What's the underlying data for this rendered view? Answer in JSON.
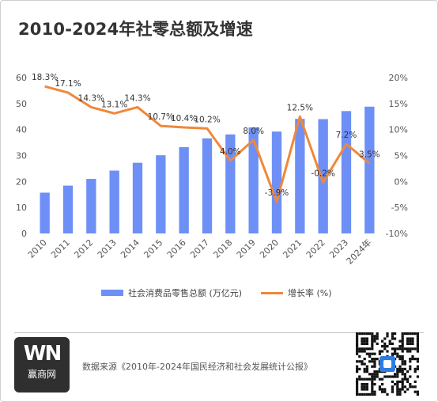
{
  "title": "2010-2024年社零总额及增速",
  "chart_data": {
    "type": "bar",
    "categories": [
      "2010",
      "2011",
      "2012",
      "2013",
      "2014",
      "2015",
      "2016",
      "2017",
      "2018",
      "2019",
      "2020",
      "2021",
      "2022",
      "2023",
      "2024年"
    ],
    "series": [
      {
        "name": "社会消费品零售总额 (万亿元)",
        "type": "bar",
        "axis": "left",
        "color": "#6d8ff6",
        "values": [
          15.7,
          18.4,
          21.0,
          24.2,
          27.2,
          30.1,
          33.2,
          36.6,
          38.1,
          40.8,
          39.2,
          44.1,
          44.0,
          47.1,
          48.8
        ]
      },
      {
        "name": "增长率 (%)",
        "type": "line",
        "axis": "right",
        "color": "#f0883a",
        "values": [
          18.3,
          17.1,
          14.3,
          13.1,
          14.3,
          10.7,
          10.4,
          10.2,
          4.0,
          8.0,
          -3.9,
          12.5,
          -0.2,
          7.2,
          3.5
        ],
        "labels": [
          "18.3%",
          "17.1%",
          "14.3%",
          "13.1%",
          "14.3%",
          "10.7%",
          "10.4%",
          "10.2%",
          "4.0%",
          "8.0%",
          "-3.9%",
          "12.5%",
          "-0.2%",
          "7.2%",
          "3.5%"
        ]
      }
    ],
    "y_left": {
      "min": 0,
      "max": 60,
      "ticks": [
        "0",
        "10",
        "20",
        "30",
        "40",
        "50",
        "60"
      ]
    },
    "y_right": {
      "min": -10,
      "max": 20,
      "ticks": [
        "-10%",
        "-5%",
        "0%",
        "5%",
        "10%",
        "15%",
        "20%"
      ]
    },
    "grid": false,
    "legend_position": "bottom"
  },
  "logo": {
    "mark": "WN",
    "text": "赢商网"
  },
  "source": "数据来源《2010年-2024年国民经济和社会发展统计公报》",
  "icons": {
    "qr": "qr-code-icon"
  }
}
